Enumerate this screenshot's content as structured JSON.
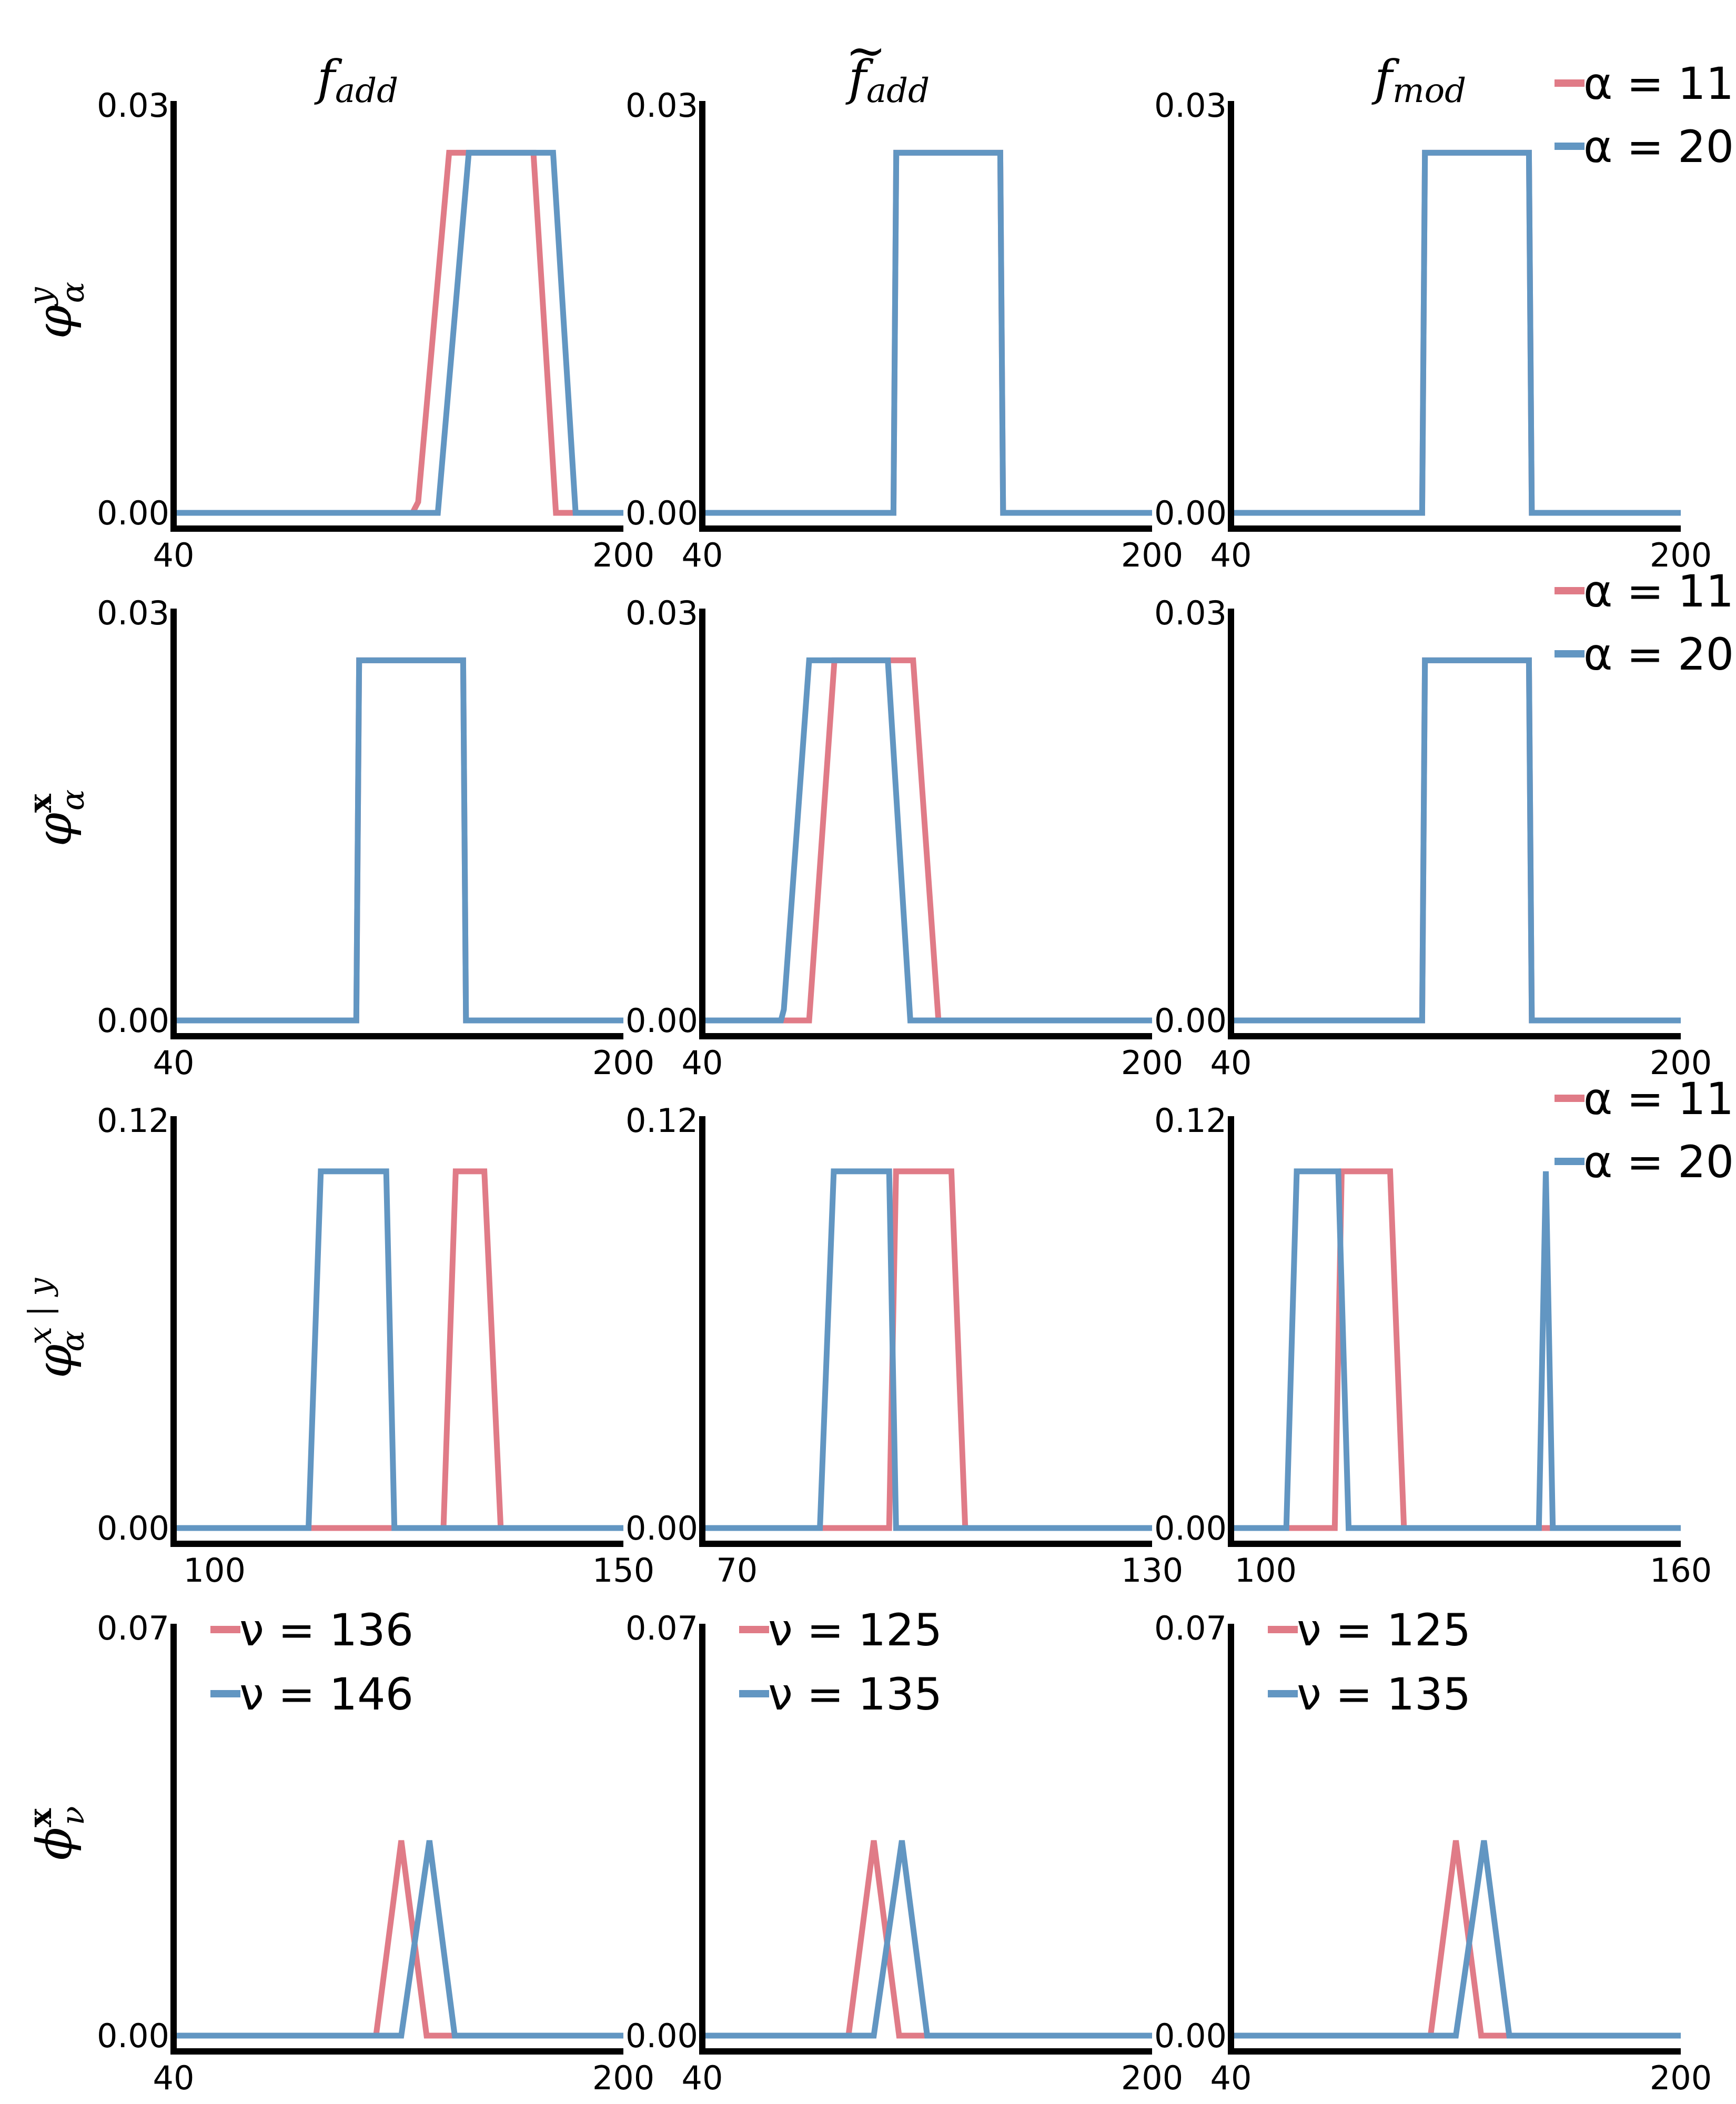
{
  "figure": {
    "colors": {
      "red": "#e07b87",
      "blue": "#6296c2",
      "axis": "#000000"
    }
  },
  "column_titles": [
    "f_add",
    "f̃_add",
    "f_mod"
  ],
  "column_titles_display": [
    "f",
    "f",
    "f"
  ],
  "column_title_subscripts": [
    "add",
    "add",
    "mod"
  ],
  "row_labels": [
    "φ^y_α",
    "φ^x_α",
    "φ^{x|y}_α",
    "ϕ^x_ν"
  ],
  "row_label_parts": [
    {
      "base": "φ",
      "sup": "y",
      "sub": "α"
    },
    {
      "base": "φ",
      "sup": "x",
      "sub": "α"
    },
    {
      "base": "φ",
      "sup": "x | y",
      "sub": "α"
    },
    {
      "base": "ϕ",
      "sup": "x",
      "sub": "ν"
    }
  ],
  "chart_data": [
    {
      "type": "line",
      "row": 0,
      "col": 0,
      "xlim": [
        40,
        200
      ],
      "ylim": [
        0,
        0.03
      ],
      "xticks": [
        "40",
        "200"
      ],
      "yticks": [
        "0.00",
        "0.03"
      ],
      "series": [
        {
          "name": "α = 11",
          "color": "red",
          "x": [
            40,
            125,
            127,
            138,
            168,
            176,
            185,
            200
          ],
          "y": [
            0,
            0,
            0.0008,
            0.0265,
            0.0265,
            0,
            0,
            0
          ]
        },
        {
          "name": "α = 20",
          "color": "blue",
          "x": [
            40,
            134,
            145,
            175,
            183,
            200
          ],
          "y": [
            0,
            0,
            0.0265,
            0.0265,
            0,
            0
          ]
        }
      ]
    },
    {
      "type": "line",
      "row": 0,
      "col": 1,
      "xlim": [
        40,
        200
      ],
      "ylim": [
        0,
        0.03
      ],
      "xticks": [
        "40",
        "200"
      ],
      "yticks": [
        "0.00",
        "0.03"
      ],
      "series": [
        {
          "name": "α = 11",
          "color": "red",
          "x": [
            40,
            108,
            109,
            146,
            147,
            200
          ],
          "y": [
            0,
            0,
            0.0265,
            0.0265,
            0,
            0
          ]
        },
        {
          "name": "α = 20",
          "color": "blue",
          "x": [
            40,
            108,
            109,
            146,
            147,
            200
          ],
          "y": [
            0,
            0,
            0.0265,
            0.0265,
            0,
            0
          ]
        }
      ]
    },
    {
      "type": "line",
      "row": 0,
      "col": 2,
      "xlim": [
        40,
        200
      ],
      "ylim": [
        0,
        0.03
      ],
      "xticks": [
        "40",
        "200"
      ],
      "yticks": [
        "0.00",
        "0.03"
      ],
      "series": [
        {
          "name": "α = 11",
          "color": "red",
          "x": [
            40,
            108,
            109,
            146,
            147,
            200
          ],
          "y": [
            0,
            0,
            0.0265,
            0.0265,
            0,
            0
          ]
        },
        {
          "name": "α = 20",
          "color": "blue",
          "x": [
            40,
            108,
            109,
            146,
            147,
            200
          ],
          "y": [
            0,
            0,
            0.0265,
            0.0265,
            0,
            0
          ]
        }
      ]
    },
    {
      "type": "line",
      "row": 1,
      "col": 0,
      "xlim": [
        40,
        200
      ],
      "ylim": [
        0,
        0.03
      ],
      "xticks": [
        "40",
        "200"
      ],
      "yticks": [
        "0.00",
        "0.03"
      ],
      "series": [
        {
          "name": "α = 11",
          "color": "red",
          "x": [
            40,
            105,
            106,
            143,
            144,
            200
          ],
          "y": [
            0,
            0,
            0.0265,
            0.0265,
            0,
            0
          ]
        },
        {
          "name": "α = 20",
          "color": "blue",
          "x": [
            40,
            105,
            106,
            143,
            144,
            200
          ],
          "y": [
            0,
            0,
            0.0265,
            0.0265,
            0,
            0
          ]
        }
      ]
    },
    {
      "type": "line",
      "row": 1,
      "col": 1,
      "xlim": [
        40,
        200
      ],
      "ylim": [
        0,
        0.03
      ],
      "xticks": [
        "40",
        "200"
      ],
      "yticks": [
        "0.00",
        "0.03"
      ],
      "series": [
        {
          "name": "α = 11",
          "color": "red",
          "x": [
            40,
            78,
            87,
            115,
            124,
            200
          ],
          "y": [
            0,
            0,
            0.0265,
            0.0265,
            0,
            0
          ]
        },
        {
          "name": "α = 20",
          "color": "blue",
          "x": [
            40,
            68,
            69,
            78,
            106,
            114,
            200
          ],
          "y": [
            0,
            0,
            0.0008,
            0.0265,
            0.0265,
            0,
            0
          ]
        }
      ]
    },
    {
      "type": "line",
      "row": 1,
      "col": 2,
      "xlim": [
        40,
        200
      ],
      "ylim": [
        0,
        0.03
      ],
      "xticks": [
        "40",
        "200"
      ],
      "yticks": [
        "0.00",
        "0.03"
      ],
      "series": [
        {
          "name": "α = 11",
          "color": "red",
          "x": [
            40,
            108,
            109,
            146,
            147,
            200
          ],
          "y": [
            0,
            0,
            0.0265,
            0.0265,
            0,
            0
          ]
        },
        {
          "name": "α = 20",
          "color": "blue",
          "x": [
            40,
            108,
            109,
            146,
            147,
            200
          ],
          "y": [
            0,
            0,
            0.0265,
            0.0265,
            0,
            0
          ]
        }
      ]
    },
    {
      "type": "line",
      "row": 2,
      "col": 0,
      "xlim": [
        95,
        150
      ],
      "ylim": [
        0,
        0.12
      ],
      "xticks": [
        "100",
        "150"
      ],
      "yticks": [
        "0.00",
        "0.12"
      ],
      "series": [
        {
          "name": "α = 11",
          "color": "red",
          "x": [
            95,
            120,
            120.5,
            128,
            129.5,
            133,
            135,
            150
          ],
          "y": [
            0,
            0,
            0,
            0,
            0.105,
            0.105,
            0,
            0
          ]
        },
        {
          "name": "α = 20",
          "color": "blue",
          "x": [
            95,
            111.5,
            113,
            121,
            122,
            150
          ],
          "y": [
            0,
            0,
            0.105,
            0.105,
            0,
            0
          ]
        }
      ]
    },
    {
      "type": "line",
      "row": 2,
      "col": 1,
      "xlim": [
        65,
        130
      ],
      "ylim": [
        0,
        0.12
      ],
      "xticks": [
        "70",
        "130"
      ],
      "yticks": [
        "0.00",
        "0.12"
      ],
      "series": [
        {
          "name": "α = 11",
          "color": "red",
          "x": [
            65,
            92,
            93,
            101,
            103,
            130
          ],
          "y": [
            0,
            0,
            0.105,
            0.105,
            0,
            0
          ]
        },
        {
          "name": "α = 20",
          "color": "blue",
          "x": [
            65,
            82,
            84,
            92,
            93,
            130
          ],
          "y": [
            0,
            0,
            0.105,
            0.105,
            0,
            0
          ]
        }
      ]
    },
    {
      "type": "line",
      "row": 2,
      "col": 2,
      "xlim": [
        95,
        160
      ],
      "ylim": [
        0,
        0.12
      ],
      "xticks": [
        "100",
        "160"
      ],
      "yticks": [
        "0.00",
        "0.12"
      ],
      "series": [
        {
          "name": "α = 11",
          "color": "red",
          "x": [
            95,
            110,
            111,
            118,
            120,
            160
          ],
          "y": [
            0,
            0,
            0.105,
            0.105,
            0,
            0
          ]
        },
        {
          "name": "α = 20",
          "color": "blue",
          "x": [
            95,
            103,
            104.5,
            110.5,
            112,
            139.5,
            140.5,
            141.5,
            160
          ],
          "y": [
            0,
            0,
            0.105,
            0.105,
            0,
            0,
            0.105,
            0,
            0
          ]
        }
      ]
    },
    {
      "type": "line",
      "row": 3,
      "col": 0,
      "xlim": [
        40,
        200
      ],
      "ylim": [
        0,
        0.07
      ],
      "xticks": [
        "40",
        "200"
      ],
      "yticks": [
        "0.00",
        "0.07"
      ],
      "series": [
        {
          "name": "ν = 136",
          "color": "red",
          "x": [
            40,
            112,
            121,
            130,
            200
          ],
          "y": [
            0,
            0,
            0.0335,
            0,
            0
          ]
        },
        {
          "name": "ν = 146",
          "color": "blue",
          "x": [
            40,
            121,
            131,
            140,
            200
          ],
          "y": [
            0,
            0,
            0.0335,
            0,
            0
          ]
        }
      ]
    },
    {
      "type": "line",
      "row": 3,
      "col": 1,
      "xlim": [
        40,
        200
      ],
      "ylim": [
        0,
        0.07
      ],
      "xticks": [
        "40",
        "200"
      ],
      "yticks": [
        "0.00",
        "0.07"
      ],
      "series": [
        {
          "name": "ν = 125",
          "color": "red",
          "x": [
            40,
            92,
            101,
            110,
            200
          ],
          "y": [
            0,
            0,
            0.0335,
            0,
            0
          ]
        },
        {
          "name": "ν = 135",
          "color": "blue",
          "x": [
            40,
            101,
            111,
            120,
            200
          ],
          "y": [
            0,
            0,
            0.0335,
            0,
            0
          ]
        }
      ]
    },
    {
      "type": "line",
      "row": 3,
      "col": 2,
      "xlim": [
        40,
        200
      ],
      "ylim": [
        0,
        0.07
      ],
      "xticks": [
        "40",
        "200"
      ],
      "yticks": [
        "0.00",
        "0.07"
      ],
      "series": [
        {
          "name": "ν = 125",
          "color": "red",
          "x": [
            40,
            111,
            120,
            129,
            200
          ],
          "y": [
            0,
            0,
            0.0335,
            0,
            0
          ]
        },
        {
          "name": "ν = 135",
          "color": "blue",
          "x": [
            40,
            120,
            130,
            139,
            200
          ],
          "y": [
            0,
            0,
            0.0335,
            0,
            0
          ]
        }
      ]
    }
  ],
  "legends": {
    "right": [
      {
        "row": 0,
        "entries": [
          "α = 11",
          "α = 20"
        ]
      },
      {
        "row": 1,
        "entries": [
          "α = 11",
          "α = 20"
        ]
      },
      {
        "row": 2,
        "entries": [
          "α = 11",
          "α = 20"
        ]
      }
    ],
    "inset": [
      {
        "row": 3,
        "col": 0,
        "entries": [
          "ν = 136",
          "ν = 146"
        ]
      },
      {
        "row": 3,
        "col": 1,
        "entries": [
          "ν = 125",
          "ν = 135"
        ]
      },
      {
        "row": 3,
        "col": 2,
        "entries": [
          "ν = 125",
          "ν = 135"
        ]
      }
    ]
  }
}
